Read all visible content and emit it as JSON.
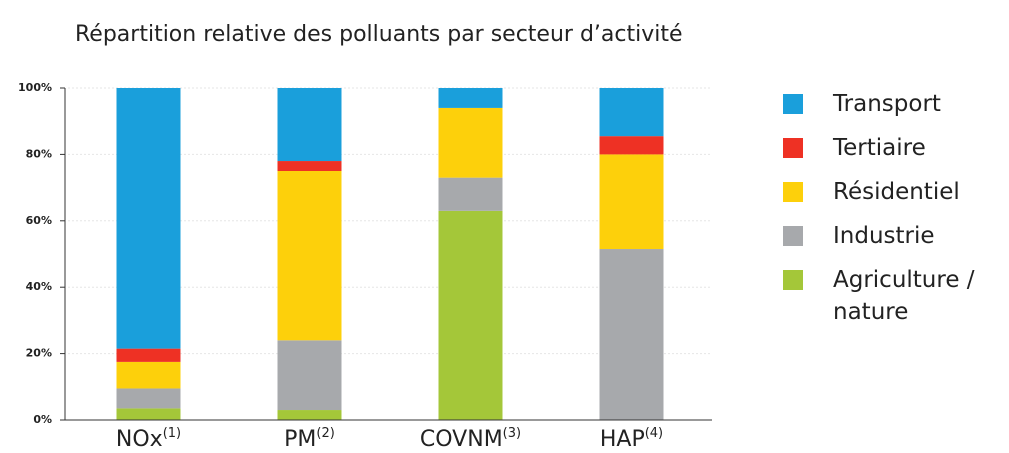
{
  "chart_data": {
    "type": "stacked_bar",
    "title": "Répartition relative des polluants par secteur d’activité",
    "categories": [
      "NOx",
      "PM",
      "COVNM",
      "HAP"
    ],
    "category_notes": [
      "(1)",
      "(2)",
      "(3)",
      "(4)"
    ],
    "series": [
      {
        "name": "Transport",
        "color": "#1a9fdb",
        "values": [
          78.5,
          22,
          6,
          14.5
        ]
      },
      {
        "name": "Tertiaire",
        "color": "#ee3124",
        "values": [
          4,
          3,
          0,
          5.5
        ]
      },
      {
        "name": "Résidentiel",
        "color": "#fdd00b",
        "values": [
          8,
          51,
          21,
          28.5
        ]
      },
      {
        "name": "Industrie",
        "color": "#a7a9ac",
        "values": [
          6,
          21,
          10,
          51.5
        ]
      },
      {
        "name": "Agriculture / nature",
        "color": "#a4c739",
        "values": [
          3.5,
          3,
          63,
          0
        ]
      }
    ],
    "ylim": [
      0,
      100
    ],
    "yticks": [
      {
        "value": 0,
        "label": "0%"
      },
      {
        "value": 20,
        "label": "20%"
      },
      {
        "value": 40,
        "label": "40%"
      },
      {
        "value": 60,
        "label": "60%"
      },
      {
        "value": 80,
        "label": "80%"
      },
      {
        "value": 100,
        "label": "100%"
      }
    ],
    "grid": true
  }
}
